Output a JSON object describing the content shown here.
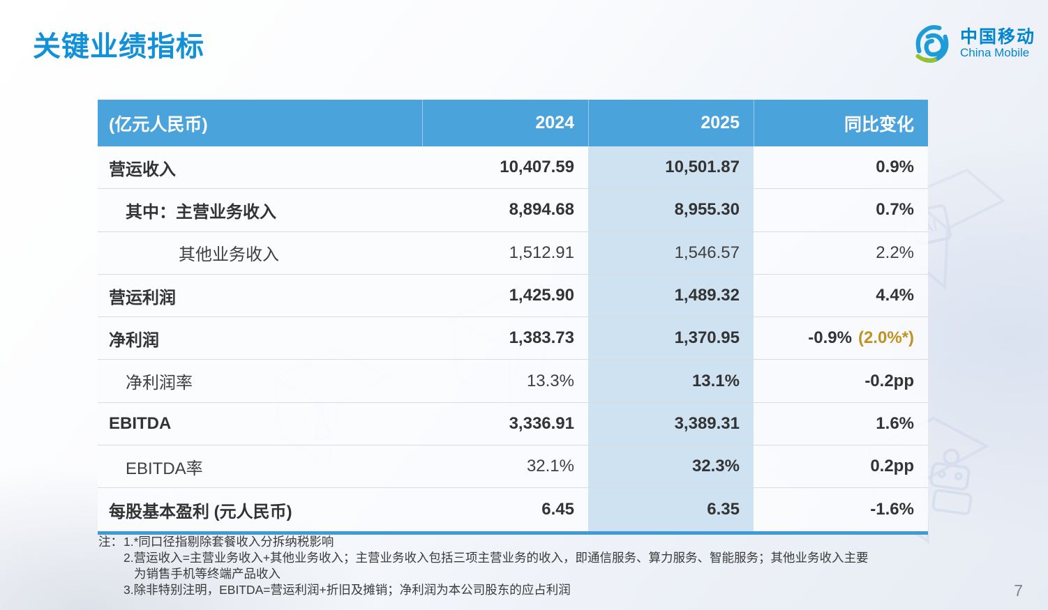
{
  "page": {
    "title": "关键业绩指标",
    "page_number": "7"
  },
  "logo": {
    "cn": "中国移动",
    "en": "China Mobile"
  },
  "table": {
    "header": {
      "unit": "(亿元人民币)",
      "col_2024": "2024",
      "col_2025": "2025",
      "col_change": "同比变化"
    },
    "rows": [
      {
        "label": "营运收入",
        "v2024": "10,407.59",
        "v2025": "10,501.87",
        "change": "0.9%",
        "bold": [
          true,
          true,
          true,
          true
        ],
        "indent": 0
      },
      {
        "label": "其中：主营业务收入",
        "v2024": "8,894.68",
        "v2025": "8,955.30",
        "change": "0.7%",
        "bold": [
          true,
          true,
          true,
          true
        ],
        "indent": 1
      },
      {
        "label": "其他业务收入",
        "v2024": "1,512.91",
        "v2025": "1,546.57",
        "change": "2.2%",
        "bold": [
          false,
          false,
          false,
          false
        ],
        "indent": 2
      },
      {
        "label": "营运利润",
        "v2024": "1,425.90",
        "v2025": "1,489.32",
        "change": "4.4%",
        "bold": [
          true,
          true,
          true,
          true
        ],
        "indent": 0
      },
      {
        "label": "净利润",
        "v2024": "1,383.73",
        "v2025": "1,370.95",
        "change": "-0.9%",
        "change_extra": "(2.0%*)",
        "bold": [
          true,
          true,
          true,
          true
        ],
        "indent": 0
      },
      {
        "label": "净利润率",
        "v2024": "13.3%",
        "v2025": "13.1%",
        "change": "-0.2pp",
        "bold": [
          false,
          false,
          true,
          true
        ],
        "indent": 1
      },
      {
        "label": "EBITDA",
        "v2024": "3,336.91",
        "v2025": "3,389.31",
        "change": "1.6%",
        "bold": [
          true,
          true,
          true,
          true
        ],
        "indent": 0
      },
      {
        "label": "EBITDA率",
        "v2024": "32.1%",
        "v2025": "32.3%",
        "change": "0.2pp",
        "bold": [
          false,
          false,
          true,
          true
        ],
        "indent": 1
      },
      {
        "label": "每股基本盈利 (元人民币)",
        "v2024": "6.45",
        "v2025": "6.35",
        "change": "-1.6%",
        "bold": [
          true,
          true,
          true,
          true
        ],
        "indent": 0
      }
    ]
  },
  "footnotes": {
    "prefix": "注：",
    "lines": [
      {
        "text": "1.*同口径指剔除套餐收入分拆纳税影响",
        "indent": 0
      },
      {
        "text": "2.营运收入=主营业务收入+其他业务收入；主营业务收入包括三项主营业务的收入，即通信服务、算力服务、智能服务；其他业务收入主要",
        "indent": 0
      },
      {
        "text": "为销售手机等终端产品收入",
        "indent": 1
      },
      {
        "text": "3.除非特别注明，EBITDA=营运利润+折旧及摊销；净利润为本公司股东的应占利润",
        "indent": 0
      }
    ]
  },
  "colors": {
    "title_blue": "#1290D8",
    "logo_blue": "#0086CF",
    "logo_green": "#97C326",
    "header_bg": "#4BA3DB",
    "highlight_col": "#CEE2F1",
    "gold": "#C09321",
    "border_blue": "#3E9BD5",
    "text_dark": "#333333",
    "text_reg": "#3F3F3F"
  }
}
